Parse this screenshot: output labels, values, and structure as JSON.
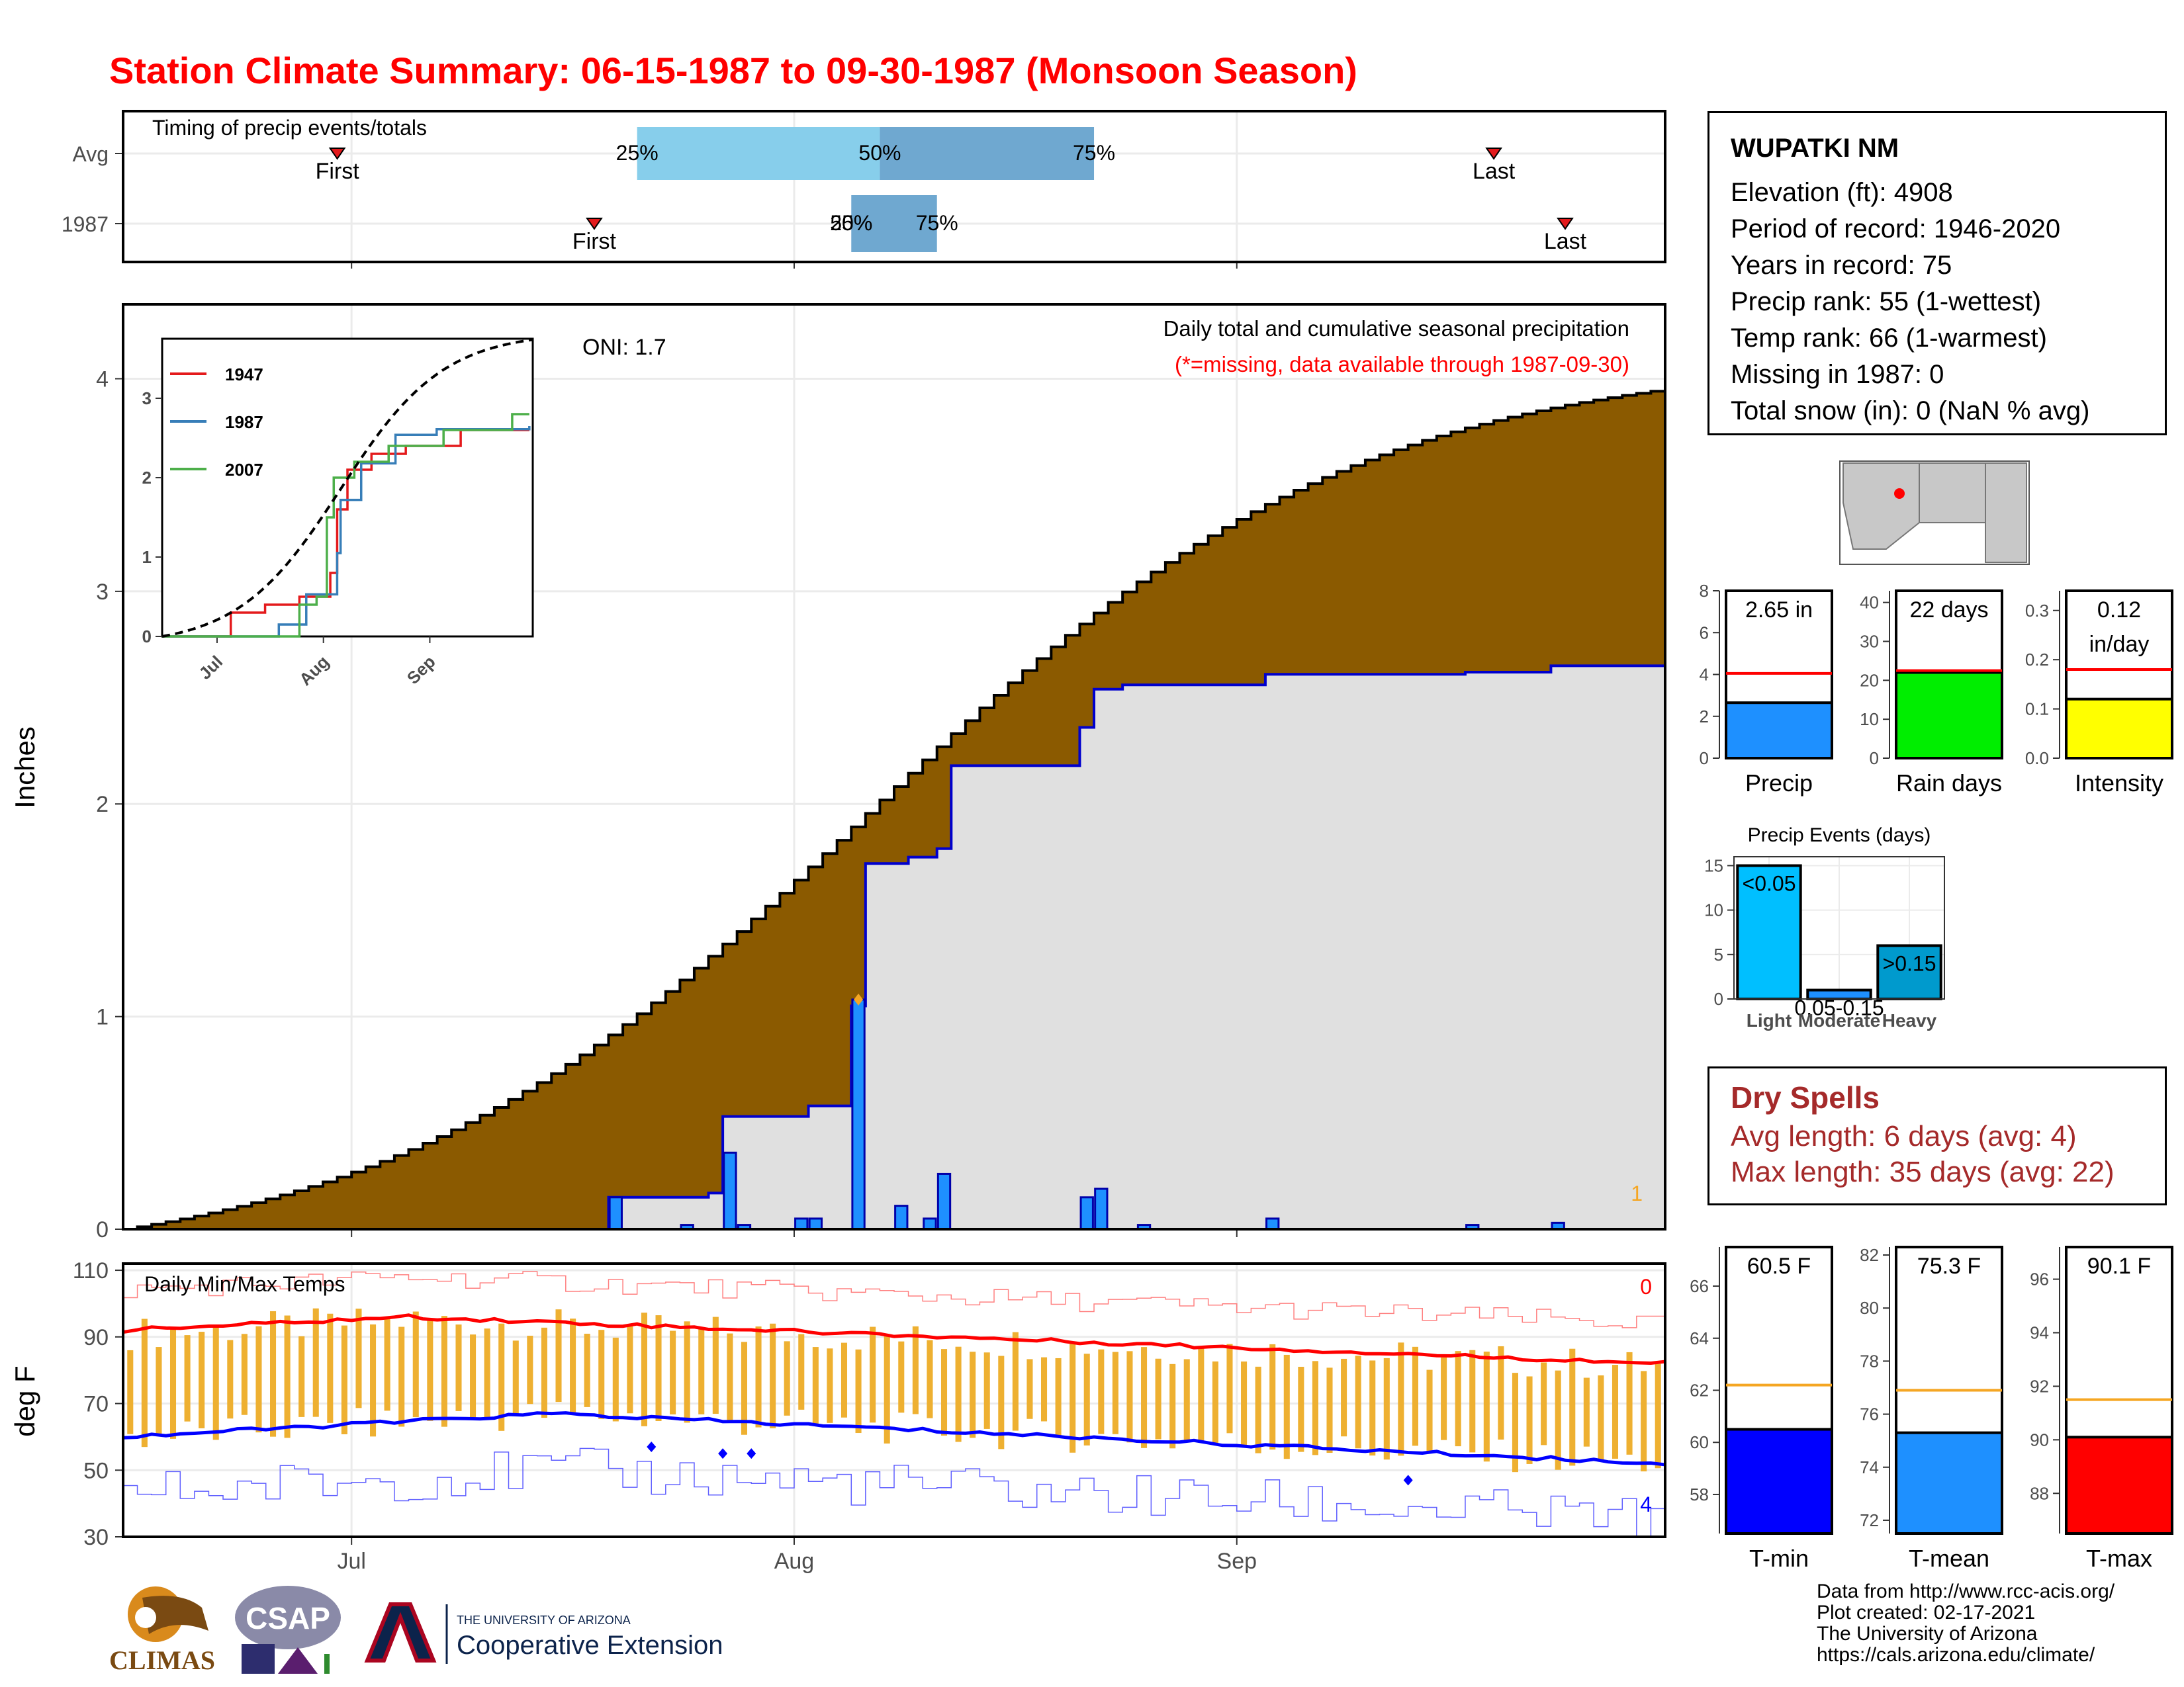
{
  "title": "Station Climate Summary: 06-15-1987 to 09-30-1987 (Monsoon Season)",
  "station": {
    "name": "WUPATKI NM",
    "lines": [
      "Elevation (ft): 4908",
      "Period of record: 1946-2020",
      "Years in record: 75",
      "Precip rank: 55 (1-wettest)",
      "Temp rank: 66 (1-warmest)",
      "Missing in 1987: 0",
      "Total snow (in): 0 (NaN % avg)"
    ]
  },
  "dry_spells": {
    "heading": "Dry Spells",
    "avg": "Avg length: 6 days (avg: 4)",
    "max": "Max length: 35 days (avg: 22)"
  },
  "credits": [
    "Data from http://www.rcc-acis.org/",
    "Plot created: 02-17-2021",
    "The University of Arizona",
    "https://cals.arizona.edu/climate/"
  ],
  "logos": {
    "climas": "CLIMAS",
    "csap": "CSAP",
    "ua_small": "THE UNIVERSITY OF ARIZONA",
    "ua_big": "Cooperative Extension"
  },
  "colors": {
    "title": "#ff0000",
    "avg_fill": "#8b5a00",
    "obs_fill": "#e0e0e0",
    "obs_line": "#0000cd",
    "bars": "#1e90ff",
    "tmax_avg": "#ff0000",
    "tmin_avg": "#0000ff",
    "temp_bars": "#eeb031",
    "precip_bar": "#1e90ff",
    "raindays_bar": "#00ee00",
    "intensity_bar": "#ffff00",
    "tmin_bar": "#0000ff",
    "tmean_bar": "#1e90ff",
    "tmax_bar": "#ff0000",
    "dry_text": "#a52a2a"
  },
  "chart_data": [
    {
      "type": "timeline",
      "id": "timing",
      "label": "Timing of precip events/totals",
      "rows": [
        {
          "name": "Avg",
          "q25": "07-21",
          "q50": "08-07",
          "q75": "08-22",
          "first": "06-30",
          "last": "09-19",
          "first_label": "First",
          "last_label": "Last",
          "q25_label": "25%",
          "q50_label": "50%",
          "q75_label": "75%"
        },
        {
          "name": "1987",
          "q25": "08-05",
          "q50": "08-05",
          "q75": "08-11",
          "first": "07-18",
          "last": "09-24",
          "first_label": "First",
          "last_label": "Last",
          "q25_label": "25%",
          "q50_label": "50%",
          "q75_label": "75%"
        }
      ],
      "x_ticks": [
        "07-01",
        "08-01",
        "09-01"
      ]
    },
    {
      "type": "area",
      "id": "cumulative",
      "title": "Daily total and cumulative seasonal precipitation",
      "subtitle": "(*=missing, data available through 1987-09-30)",
      "oni": "ONI: 1.7",
      "ylabel": "Inches",
      "ylim": [
        0,
        4.35
      ],
      "yticks": [
        0,
        1,
        2,
        3,
        4
      ],
      "x_ticks": [
        "07-01",
        "08-01",
        "09-01"
      ],
      "x_tick_labels": [
        "Jul",
        "Aug",
        "Sep"
      ],
      "missing_count": "1",
      "avg_final": 3.95,
      "observed_steps": [
        [
          "06-15",
          0
        ],
        [
          "07-19",
          0.15
        ],
        [
          "07-26",
          0.17
        ],
        [
          "07-27",
          0.53
        ],
        [
          "08-02",
          0.58
        ],
        [
          "08-05",
          1.05
        ],
        [
          "08-06",
          1.72
        ],
        [
          "08-09",
          1.75
        ],
        [
          "08-11",
          1.79
        ],
        [
          "08-12",
          2.18
        ],
        [
          "08-21",
          2.36
        ],
        [
          "08-22",
          2.54
        ],
        [
          "08-24",
          2.56
        ],
        [
          "09-03",
          2.61
        ],
        [
          "09-17",
          2.62
        ],
        [
          "09-23",
          2.65
        ],
        [
          "09-30",
          2.65
        ]
      ],
      "daily_bars": [
        [
          "07-19",
          0.15
        ],
        [
          "07-24",
          0.02
        ],
        [
          "07-27",
          0.36
        ],
        [
          "07-28",
          0.02
        ],
        [
          "08-01",
          0.05
        ],
        [
          "08-02",
          0.05
        ],
        [
          "08-05",
          1.08
        ],
        [
          "08-08",
          0.11
        ],
        [
          "08-10",
          0.05
        ],
        [
          "08-11",
          0.26
        ],
        [
          "08-21",
          0.15
        ],
        [
          "08-22",
          0.19
        ],
        [
          "08-25",
          0.02
        ],
        [
          "09-03",
          0.05
        ],
        [
          "09-17",
          0.02
        ],
        [
          "09-23",
          0.03
        ]
      ],
      "missing_marker": [
        "08-05",
        1.08
      ]
    },
    {
      "type": "line",
      "id": "inset",
      "legend": [
        "1947",
        "1987",
        "2007"
      ],
      "yticks": [
        0,
        1,
        2,
        3
      ],
      "x_tick_labels": [
        "Jul",
        "Aug",
        "Sep"
      ],
      "series": [
        {
          "name": "1947",
          "color": "#e41a1c",
          "steps": [
            [
              "06-15",
              0
            ],
            [
              "07-05",
              0.3
            ],
            [
              "07-10",
              0.3
            ],
            [
              "07-15",
              0.4
            ],
            [
              "07-25",
              0.5
            ],
            [
              "08-03",
              0.8
            ],
            [
              "08-05",
              1.6
            ],
            [
              "08-08",
              2.1
            ],
            [
              "08-15",
              2.3
            ],
            [
              "08-25",
              2.4
            ],
            [
              "09-10",
              2.6
            ],
            [
              "09-30",
              2.6
            ]
          ]
        },
        {
          "name": "1987",
          "color": "#377eb8",
          "steps": [
            [
              "06-15",
              0
            ],
            [
              "07-19",
              0.15
            ],
            [
              "07-27",
              0.53
            ],
            [
              "08-05",
              1.05
            ],
            [
              "08-06",
              1.72
            ],
            [
              "08-12",
              2.18
            ],
            [
              "08-22",
              2.54
            ],
            [
              "09-03",
              2.61
            ],
            [
              "09-30",
              2.65
            ]
          ]
        },
        {
          "name": "2007",
          "color": "#4daf4a",
          "steps": [
            [
              "06-15",
              0
            ],
            [
              "07-25",
              0.4
            ],
            [
              "07-30",
              0.5
            ],
            [
              "08-02",
              1.5
            ],
            [
              "08-04",
              2.0
            ],
            [
              "08-10",
              2.2
            ],
            [
              "08-20",
              2.4
            ],
            [
              "09-05",
              2.6
            ],
            [
              "09-25",
              2.8
            ],
            [
              "09-30",
              2.8
            ]
          ]
        },
        {
          "name": "Avg",
          "color": "#000000",
          "dashed": true,
          "final": 3.95
        }
      ]
    },
    {
      "type": "bar",
      "id": "tempseries",
      "label": "Daily Min/Max Temps",
      "ylabel": "deg F",
      "ylim": [
        30,
        112
      ],
      "yticks": [
        30,
        50,
        70,
        90,
        110
      ],
      "x_tick_labels": [
        "Jul",
        "Aug",
        "Sep"
      ],
      "count_top": "0",
      "count_bottom": "4",
      "tmax_avg_start": 92,
      "tmax_avg_mid": 96,
      "tmax_avg_end": 82,
      "tmin_avg_start": 60,
      "tmin_avg_mid": 67,
      "tmin_avg_end": 52
    },
    {
      "type": "bar",
      "id": "precip_total",
      "categories": [
        "Precip"
      ],
      "values": [
        2.65
      ],
      "label": "2.65 in",
      "avg": 4.05,
      "ylim": [
        0,
        8
      ],
      "yticks": [
        0,
        2,
        4,
        6,
        8
      ]
    },
    {
      "type": "bar",
      "id": "rain_days",
      "categories": [
        "Rain days"
      ],
      "values": [
        22
      ],
      "label": "22 days",
      "avg": 22.5,
      "ylim": [
        0,
        43
      ],
      "yticks": [
        0,
        10,
        20,
        30,
        40
      ]
    },
    {
      "type": "bar",
      "id": "intensity",
      "categories": [
        "Intensity"
      ],
      "values": [
        0.12
      ],
      "label": [
        "0.12",
        "in/day"
      ],
      "avg": 0.18,
      "ylim": [
        0,
        0.34
      ],
      "yticks": [
        0.0,
        0.1,
        0.2,
        0.3
      ]
    },
    {
      "type": "bar",
      "id": "precip_events",
      "title": "Precip Events (days)",
      "categories": [
        "Light",
        "Moderate",
        "Heavy"
      ],
      "values": [
        15,
        1,
        6
      ],
      "bar_labels": [
        "<0.05",
        "0.05-0.15",
        ">0.15"
      ],
      "ylim": [
        0,
        16
      ],
      "yticks": [
        0,
        5,
        10,
        15
      ]
    },
    {
      "type": "bar",
      "id": "tmin",
      "categories": [
        "T-min"
      ],
      "values": [
        60.5
      ],
      "label": "60.5 F",
      "avg": 62.2,
      "ylim": [
        56.5,
        67.5
      ],
      "yticks": [
        58,
        60,
        62,
        64,
        66
      ]
    },
    {
      "type": "bar",
      "id": "tmean",
      "categories": [
        "T-mean"
      ],
      "values": [
        75.3
      ],
      "label": "75.3 F",
      "avg": 76.9,
      "ylim": [
        71.5,
        82.3
      ],
      "yticks": [
        72,
        74,
        76,
        78,
        80,
        82
      ]
    },
    {
      "type": "bar",
      "id": "tmax",
      "categories": [
        "T-max"
      ],
      "values": [
        90.1
      ],
      "label": "90.1 F",
      "avg": 91.5,
      "ylim": [
        86.5,
        97.2
      ],
      "yticks": [
        88,
        90,
        92,
        94,
        96
      ]
    }
  ]
}
